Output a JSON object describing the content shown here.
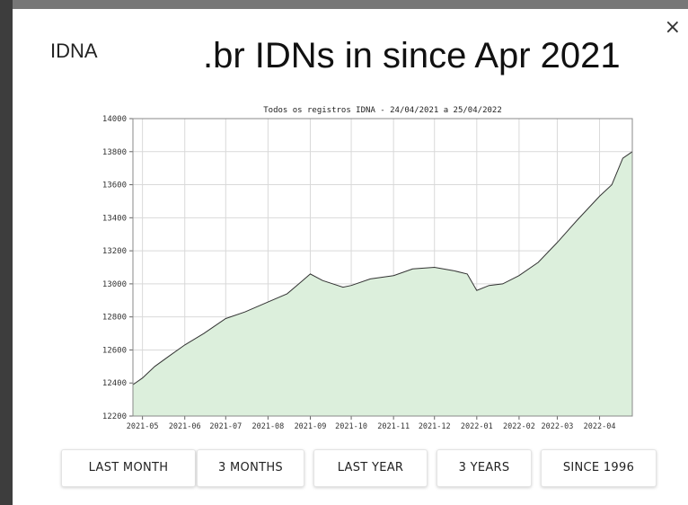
{
  "modal": {
    "close_label": "×",
    "label": "IDNA",
    "headline": ".br IDNs in since Apr 2021"
  },
  "buttons": [
    "LAST MONTH",
    "3 MONTHS",
    "LAST YEAR",
    "3 YEARS",
    "SINCE 1996"
  ],
  "chart_data": {
    "type": "area",
    "title": "Todos os registros IDNA - 24/04/2021 a 25/04/2022",
    "xlabel": "",
    "ylabel": "",
    "ylim": [
      12200,
      14000
    ],
    "yticks": [
      12200,
      12400,
      12600,
      12800,
      13000,
      13200,
      13400,
      13600,
      13800,
      14000
    ],
    "xticks": [
      "2021-05",
      "2021-06",
      "2021-07",
      "2021-08",
      "2021-09",
      "2021-10",
      "2021-11",
      "2021-12",
      "2022-01",
      "2022-02",
      "2022-03",
      "2022-04"
    ],
    "grid": true,
    "series": [
      {
        "values": [
          {
            "date": "2021-04-24",
            "value": 12390
          },
          {
            "date": "2021-05-01",
            "value": 12430
          },
          {
            "date": "2021-05-10",
            "value": 12500
          },
          {
            "date": "2021-05-20",
            "value": 12560
          },
          {
            "date": "2021-06-01",
            "value": 12630
          },
          {
            "date": "2021-06-15",
            "value": 12700
          },
          {
            "date": "2021-07-01",
            "value": 12790
          },
          {
            "date": "2021-07-15",
            "value": 12830
          },
          {
            "date": "2021-08-01",
            "value": 12890
          },
          {
            "date": "2021-08-15",
            "value": 12940
          },
          {
            "date": "2021-08-25",
            "value": 13010
          },
          {
            "date": "2021-09-01",
            "value": 13060
          },
          {
            "date": "2021-09-10",
            "value": 13020
          },
          {
            "date": "2021-09-25",
            "value": 12980
          },
          {
            "date": "2021-10-01",
            "value": 12990
          },
          {
            "date": "2021-10-15",
            "value": 13030
          },
          {
            "date": "2021-11-01",
            "value": 13050
          },
          {
            "date": "2021-11-15",
            "value": 13090
          },
          {
            "date": "2021-12-01",
            "value": 13100
          },
          {
            "date": "2021-12-15",
            "value": 13080
          },
          {
            "date": "2021-12-25",
            "value": 13060
          },
          {
            "date": "2022-01-01",
            "value": 12960
          },
          {
            "date": "2022-01-10",
            "value": 12990
          },
          {
            "date": "2022-01-20",
            "value": 13000
          },
          {
            "date": "2022-02-01",
            "value": 13050
          },
          {
            "date": "2022-02-15",
            "value": 13130
          },
          {
            "date": "2022-03-01",
            "value": 13250
          },
          {
            "date": "2022-03-15",
            "value": 13380
          },
          {
            "date": "2022-04-01",
            "value": 13530
          },
          {
            "date": "2022-04-10",
            "value": 13600
          },
          {
            "date": "2022-04-18",
            "value": 13760
          },
          {
            "date": "2022-04-25",
            "value": 13800
          }
        ]
      }
    ]
  }
}
